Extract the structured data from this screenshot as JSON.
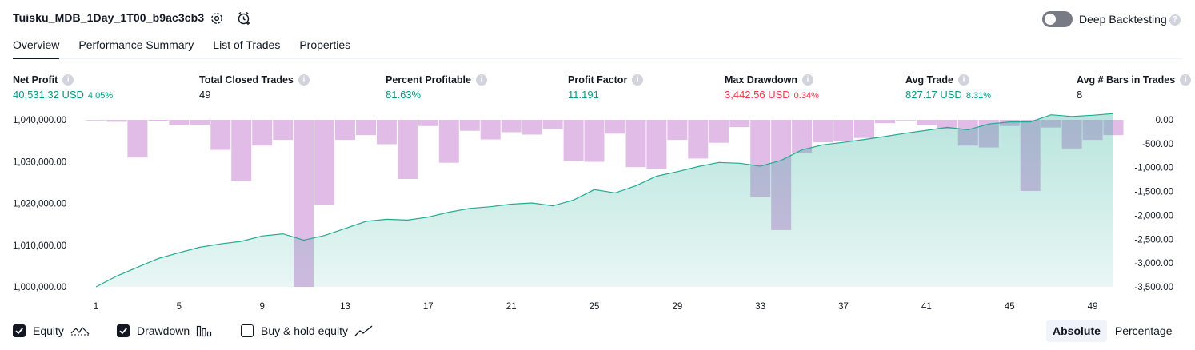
{
  "header": {
    "strategy_name": "Tuisku_MDB_1Day_1T00_b9ac3cb3",
    "settings_icon": "gear-icon",
    "alert_icon": "alarm-clock-add-icon",
    "deep_backtesting_label": "Deep Backtesting",
    "deep_backtesting_enabled": false
  },
  "tabs": [
    {
      "label": "Overview",
      "active": true
    },
    {
      "label": "Performance Summary",
      "active": false
    },
    {
      "label": "List of Trades",
      "active": false
    },
    {
      "label": "Properties",
      "active": false
    }
  ],
  "metrics": [
    {
      "label": "Net Profit",
      "value": "40,531.32 USD",
      "pct": "4.05%",
      "color": "#089981"
    },
    {
      "label": "Total Closed Trades",
      "value": "49",
      "pct": "",
      "color": "#131722"
    },
    {
      "label": "Percent Profitable",
      "value": "81.63%",
      "pct": "",
      "color": "#089981"
    },
    {
      "label": "Profit Factor",
      "value": "11.191",
      "pct": "",
      "color": "#089981"
    },
    {
      "label": "Max Drawdown",
      "value": "3,442.56 USD",
      "pct": "0.34%",
      "color": "#f23645"
    },
    {
      "label": "Avg Trade",
      "value": "827.17 USD",
      "pct": "8.31%",
      "color": "#089981"
    },
    {
      "label": "Avg # Bars in Trades",
      "value": "8",
      "pct": "",
      "color": "#131722"
    }
  ],
  "chart_data": {
    "type": "line",
    "x": [
      1,
      2,
      3,
      4,
      5,
      6,
      7,
      8,
      9,
      10,
      11,
      12,
      13,
      14,
      15,
      16,
      17,
      18,
      19,
      20,
      21,
      22,
      23,
      24,
      25,
      26,
      27,
      28,
      29,
      30,
      31,
      32,
      33,
      34,
      35,
      36,
      37,
      38,
      39,
      40,
      41,
      42,
      43,
      44,
      45,
      46,
      47,
      48,
      49,
      50
    ],
    "x_ticks": [
      "1",
      "5",
      "9",
      "13",
      "17",
      "21",
      "25",
      "29",
      "33",
      "37",
      "41",
      "45",
      "49"
    ],
    "y_left_ticks": [
      "1,040,000.00",
      "1,030,000.00",
      "1,020,000.00",
      "1,010,000.00",
      "1,000,000.00"
    ],
    "y_right_ticks": [
      "0.00",
      "-500.00",
      "-1,000.00",
      "-1,500.00",
      "-2,000.00",
      "-2,500.00",
      "-3,000.00",
      "-3,500.00"
    ],
    "y_left_range": [
      1000000,
      1040000
    ],
    "y_right_range": [
      -3500,
      0
    ],
    "series": [
      {
        "name": "Equity",
        "axis": "left",
        "color": "#22ab94",
        "values": [
          1000000,
          1002600,
          1004700,
          1006800,
          1008200,
          1009500,
          1010300,
          1010900,
          1012200,
          1012700,
          1011200,
          1012300,
          1014000,
          1015700,
          1016200,
          1016000,
          1016700,
          1017900,
          1018800,
          1019200,
          1019800,
          1020100,
          1019400,
          1020800,
          1023300,
          1022500,
          1024200,
          1026500,
          1027600,
          1028800,
          1029800,
          1029600,
          1028900,
          1030300,
          1032800,
          1034000,
          1034600,
          1035300,
          1036000,
          1036800,
          1037500,
          1038200,
          1037600,
          1039000,
          1039500,
          1039500,
          1041200,
          1040800,
          1041100,
          1041500
        ]
      },
      {
        "name": "Drawdown",
        "axis": "right",
        "color": "#ce93d8",
        "values": [
          -10,
          -40,
          -790,
          -20,
          -110,
          -100,
          -630,
          -1280,
          -540,
          -420,
          -3500,
          -1780,
          -420,
          -320,
          -510,
          -1240,
          -130,
          -900,
          -230,
          -410,
          -260,
          -310,
          -190,
          -860,
          -880,
          -290,
          -990,
          -1030,
          -420,
          -810,
          -480,
          -150,
          -1610,
          -2310,
          -690,
          -470,
          -450,
          -380,
          -70,
          -10,
          -110,
          -190,
          -540,
          -580,
          -130,
          -1490,
          -160,
          -600,
          -420,
          -320
        ]
      }
    ],
    "legend": [
      {
        "label": "Equity",
        "checked": true,
        "icon": "equity-line-icon"
      },
      {
        "label": "Drawdown",
        "checked": true,
        "icon": "drawdown-bars-icon"
      },
      {
        "label": "Buy & hold equity",
        "checked": false,
        "icon": "buy-hold-line-icon"
      }
    ],
    "grid": false
  },
  "view_mode": {
    "options": [
      "Absolute",
      "Percentage"
    ],
    "selected": "Absolute"
  }
}
